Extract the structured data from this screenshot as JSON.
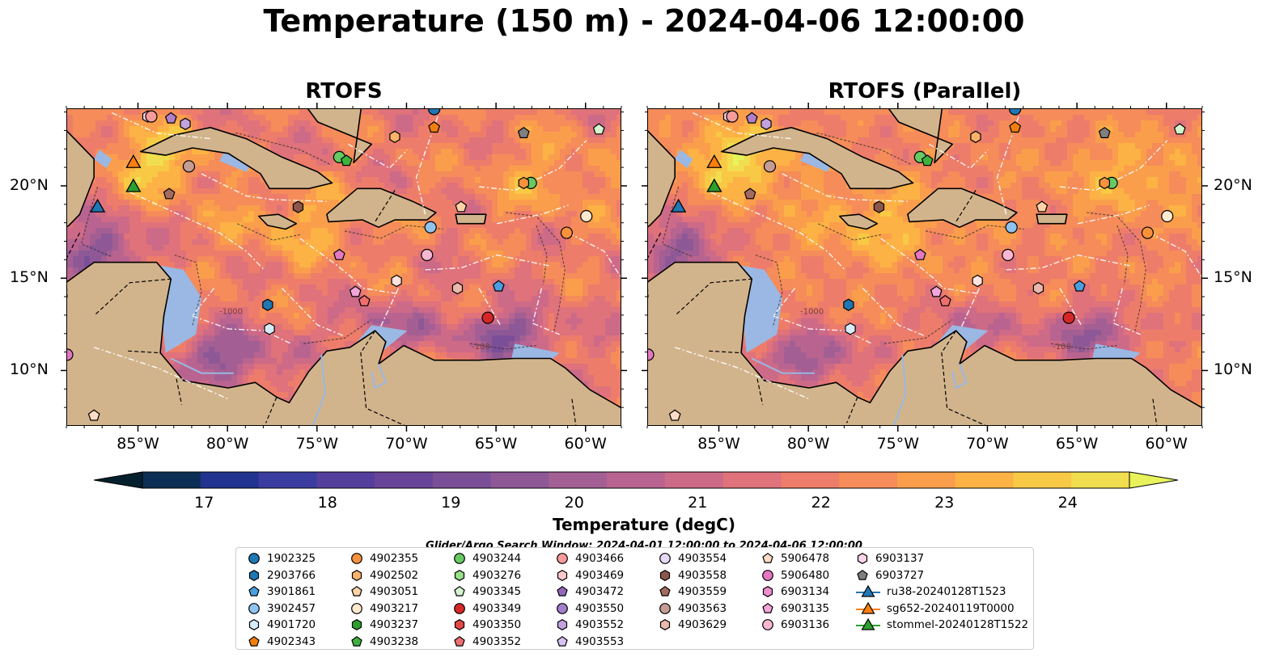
{
  "title": "Temperature (150 m) - 2024-04-06 12:00:00",
  "panels": [
    {
      "title": "RTOFS"
    },
    {
      "title": "RTOFS (Parallel)"
    }
  ],
  "map": {
    "lon_ticks": [
      "85°W",
      "80°W",
      "75°W",
      "70°W",
      "65°W",
      "60°W"
    ],
    "lat_ticks": [
      "20°N",
      "15°N",
      "10°N"
    ],
    "lon_range": [
      -89,
      -58
    ],
    "lat_range": [
      7,
      24.2
    ],
    "colormap": "thermal",
    "land_color": "#d2b48c",
    "shelf_color": "#9ab8e3",
    "contour_labels": [
      "-100",
      "-1000"
    ]
  },
  "colorbar": {
    "label": "Temperature (degC)",
    "ticks": [
      "17",
      "18",
      "19",
      "20",
      "21",
      "22",
      "23",
      "24"
    ],
    "range": [
      16.5,
      24.5
    ],
    "step": 0.5,
    "extend": "both",
    "colors": [
      "#04202e",
      "#0e2f55",
      "#21338e",
      "#3b3c9f",
      "#553f9d",
      "#694599",
      "#7b4f97",
      "#8e5896",
      "#a35f93",
      "#b96490",
      "#cd6a87",
      "#df727a",
      "#ed7d6a",
      "#f58c5a",
      "#fa9e4c",
      "#fcb244",
      "#f8c945",
      "#f1de4f",
      "#e8f35c"
    ]
  },
  "search_window": "Glider/Argo Search Window: 2024-04-01 12:00:00 to 2024-04-06 12:00:00",
  "legend": {
    "columns": [
      [
        {
          "label": "1902325",
          "marker": "circle",
          "color": "#1f77b4"
        },
        {
          "label": "2903766",
          "marker": "hexagon",
          "color": "#1f77b4"
        },
        {
          "label": "3901861",
          "marker": "pentagon",
          "color": "#4a9fe0"
        },
        {
          "label": "3902457",
          "marker": "circle",
          "color": "#8fc3ee"
        },
        {
          "label": "4901720",
          "marker": "hexagon",
          "color": "#d7ecfb"
        },
        {
          "label": "4902343",
          "marker": "pentagon",
          "color": "#f07f0e"
        }
      ],
      [
        {
          "label": "4902355",
          "marker": "circle",
          "color": "#f7913c"
        },
        {
          "label": "4902502",
          "marker": "hexagon",
          "color": "#fbb26b"
        },
        {
          "label": "4903051",
          "marker": "pentagon",
          "color": "#ffd3a6"
        },
        {
          "label": "4903217",
          "marker": "circle",
          "color": "#ffe9cf"
        },
        {
          "label": "4903237",
          "marker": "hexagon",
          "color": "#2ca02c"
        },
        {
          "label": "4903238",
          "marker": "pentagon",
          "color": "#3fb13f"
        }
      ],
      [
        {
          "label": "4903244",
          "marker": "circle",
          "color": "#66c962"
        },
        {
          "label": "4903276",
          "marker": "hexagon",
          "color": "#98df8a"
        },
        {
          "label": "4903345",
          "marker": "pentagon",
          "color": "#d4f5cf"
        },
        {
          "label": "4903349",
          "marker": "circle",
          "color": "#d62728"
        },
        {
          "label": "4903350",
          "marker": "hexagon",
          "color": "#e34848"
        },
        {
          "label": "4903352",
          "marker": "pentagon",
          "color": "#ef6f6f"
        }
      ],
      [
        {
          "label": "4903466",
          "marker": "circle",
          "color": "#f59b9a"
        },
        {
          "label": "4903469",
          "marker": "hexagon",
          "color": "#fdc9c8"
        },
        {
          "label": "4903472",
          "marker": "pentagon",
          "color": "#9467bd"
        },
        {
          "label": "4903550",
          "marker": "circle",
          "color": "#a17fcb"
        },
        {
          "label": "4903552",
          "marker": "hexagon",
          "color": "#c2a3e0"
        },
        {
          "label": "4903553",
          "marker": "pentagon",
          "color": "#d6c1f3"
        }
      ],
      [
        {
          "label": "4903554",
          "marker": "circle",
          "color": "#e6d9f7"
        },
        {
          "label": "4903558",
          "marker": "hexagon",
          "color": "#8c564b"
        },
        {
          "label": "4903559",
          "marker": "pentagon",
          "color": "#a16c5f"
        },
        {
          "label": "4903563",
          "marker": "circle",
          "color": "#c49c94"
        },
        {
          "label": "4903629",
          "marker": "hexagon",
          "color": "#e8b9ac"
        }
      ],
      [
        {
          "label": "5906478",
          "marker": "pentagon",
          "color": "#ffdcc7"
        },
        {
          "label": "5906480",
          "marker": "circle",
          "color": "#e377c2"
        },
        {
          "label": "6903134",
          "marker": "hexagon",
          "color": "#ec8fd0"
        },
        {
          "label": "6903135",
          "marker": "pentagon",
          "color": "#f2a6da"
        },
        {
          "label": "6903136",
          "marker": "circle",
          "color": "#f7b6d2"
        }
      ],
      [
        {
          "label": "6903137",
          "marker": "hexagon",
          "color": "#fbd4ea"
        },
        {
          "label": "6903727",
          "marker": "pentagon",
          "color": "#7f7f7f"
        },
        {
          "label": "ru38-20240128T1523",
          "marker": "triangle-line",
          "color": "#1f77b4"
        },
        {
          "label": "sg652-20240119T0000",
          "marker": "triangle-line",
          "color": "#ff7f0e"
        },
        {
          "label": "stommel-20240128T1522",
          "marker": "triangle-line",
          "color": "#2ca02c"
        }
      ]
    ]
  },
  "floats": [
    {
      "id": "6903137",
      "lon": -84.5,
      "lat": 23.8,
      "marker": "hexagon",
      "color": "#fbd4ea"
    },
    {
      "id": "4903563",
      "lon": -84.3,
      "lat": 23.8,
      "marker": "circle",
      "color": "#f59b9a"
    },
    {
      "id": "4903472",
      "lon": -83.2,
      "lat": 23.7,
      "marker": "pentagon",
      "color": "#b07fc9"
    },
    {
      "id": "4903552",
      "lon": -82.4,
      "lat": 23.4,
      "marker": "hexagon",
      "color": "#c2a3e0"
    },
    {
      "id": "4903563b",
      "lon": -82.2,
      "lat": 21.1,
      "marker": "circle",
      "color": "#c49c94"
    },
    {
      "id": "4903559",
      "lon": -83.3,
      "lat": 19.6,
      "marker": "pentagon",
      "color": "#a16c5f"
    },
    {
      "id": "1902325",
      "lon": -68.5,
      "lat": 24.2,
      "marker": "circle",
      "color": "#1f77b4"
    },
    {
      "id": "4902343",
      "lon": -68.5,
      "lat": 23.2,
      "marker": "pentagon",
      "color": "#f07f0e"
    },
    {
      "id": "6903727",
      "lon": -63.5,
      "lat": 22.9,
      "marker": "pentagon",
      "color": "#7f7f7f"
    },
    {
      "id": "4903345",
      "lon": -59.3,
      "lat": 23.1,
      "marker": "pentagon",
      "color": "#d4f5cf"
    },
    {
      "id": "4902502",
      "lon": -70.7,
      "lat": 22.7,
      "marker": "hexagon",
      "color": "#fbb26b"
    },
    {
      "id": "4903244",
      "lon": -73.8,
      "lat": 21.6,
      "marker": "circle",
      "color": "#66c962"
    },
    {
      "id": "4903238",
      "lon": -73.4,
      "lat": 21.4,
      "marker": "pentagon",
      "color": "#3fb13f"
    },
    {
      "id": "4903244b",
      "lon": -63.1,
      "lat": 20.2,
      "marker": "circle",
      "color": "#66c962"
    },
    {
      "id": "4903469",
      "lon": -63.5,
      "lat": 20.2,
      "marker": "hexagon",
      "color": "#f7913c"
    },
    {
      "id": "4903558",
      "lon": -76.1,
      "lat": 18.9,
      "marker": "hexagon",
      "color": "#8c564b"
    },
    {
      "id": "4903051",
      "lon": -67.0,
      "lat": 18.9,
      "marker": "pentagon",
      "color": "#ffd3a6"
    },
    {
      "id": "4903217",
      "lon": -60.0,
      "lat": 18.4,
      "marker": "circle",
      "color": "#ffe9cf"
    },
    {
      "id": "3902457",
      "lon": -68.7,
      "lat": 17.8,
      "marker": "circle",
      "color": "#8fc3ee"
    },
    {
      "id": "4902355",
      "lon": -61.1,
      "lat": 17.5,
      "marker": "circle",
      "color": "#f7913c"
    },
    {
      "id": "6903134",
      "lon": -73.8,
      "lat": 16.3,
      "marker": "pentagon",
      "color": "#e377c2"
    },
    {
      "id": "6903136",
      "lon": -68.9,
      "lat": 16.3,
      "marker": "circle",
      "color": "#f7b6d2"
    },
    {
      "id": "4903629",
      "lon": -70.6,
      "lat": 14.9,
      "marker": "hexagon",
      "color": "#ffe3de"
    },
    {
      "id": "4903629b",
      "lon": -67.2,
      "lat": 14.5,
      "marker": "hexagon",
      "color": "#e8b9ac"
    },
    {
      "id": "3901861",
      "lon": -64.9,
      "lat": 14.6,
      "marker": "pentagon",
      "color": "#4a9fe0"
    },
    {
      "id": "6903135",
      "lon": -72.9,
      "lat": 14.3,
      "marker": "pentagon",
      "color": "#f2a6da"
    },
    {
      "id": "4903352",
      "lon": -72.4,
      "lat": 13.8,
      "marker": "pentagon",
      "color": "#ef6f6f"
    },
    {
      "id": "2903766",
      "lon": -77.8,
      "lat": 13.6,
      "marker": "hexagon",
      "color": "#1f77b4"
    },
    {
      "id": "4903349",
      "lon": -65.5,
      "lat": 12.9,
      "marker": "circle",
      "color": "#d62728"
    },
    {
      "id": "4901720",
      "lon": -77.7,
      "lat": 12.3,
      "marker": "hexagon",
      "color": "#d7ecfb"
    },
    {
      "id": "5906480",
      "lon": -89.0,
      "lat": 10.9,
      "marker": "circle",
      "color": "#e377c2"
    },
    {
      "id": "5906478",
      "lon": -87.5,
      "lat": 7.6,
      "marker": "pentagon",
      "color": "#ffdcc7"
    }
  ],
  "gliders": [
    {
      "id": "ru38-20240128T1523",
      "lon": -87.3,
      "lat": 18.9,
      "color": "#1f77b4"
    },
    {
      "id": "sg652-20240119T0000",
      "lon": -85.3,
      "lat": 21.3,
      "color": "#ff7f0e"
    },
    {
      "id": "stommel-20240128T1522",
      "lon": -85.3,
      "lat": 20.0,
      "color": "#2ca02c"
    }
  ]
}
